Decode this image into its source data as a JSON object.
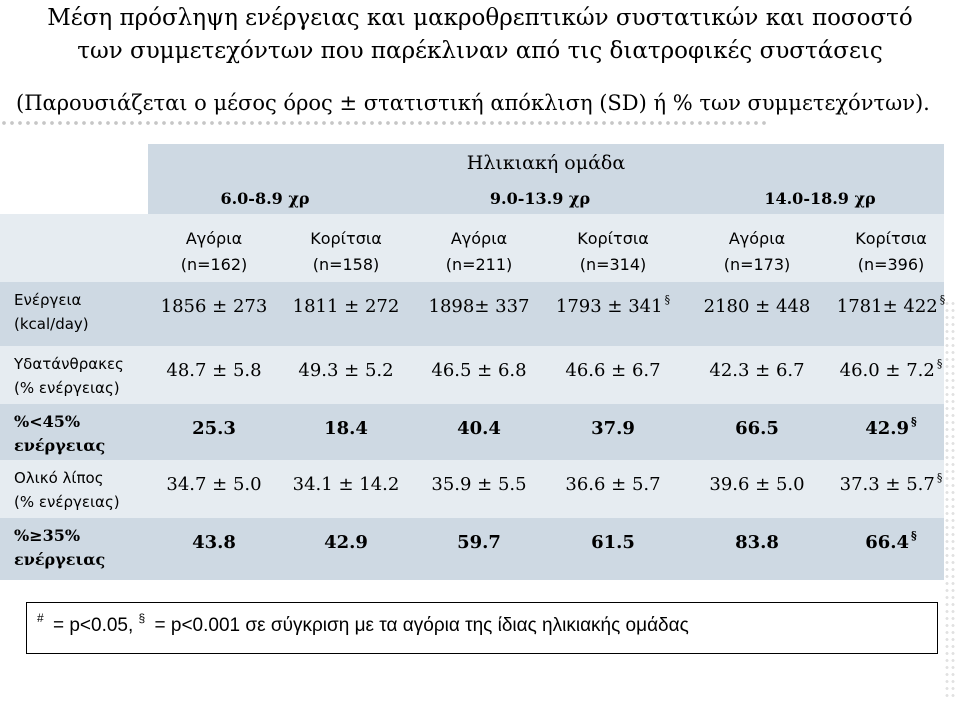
{
  "title": {
    "line1": "Μέση πρόσληψη ενέργειας και μακροθρεπτικών συστατικών και ποσοστό",
    "line2": "των συμμετεχόντων που παρέκλιναν από τις διατροφικές συστάσεις"
  },
  "subtitle": "(Παρουσιάζεται ο μέσος όρος ± στατιστική απόκλιση (SD) ή % των συμμετεχόντων).",
  "table": {
    "group_header": "Ηλικιακή ομάδα",
    "age_groups": [
      "6.0-8.9 χρ",
      "9.0-13.9 χρ",
      "14.0-18.9 χρ"
    ],
    "columns": [
      {
        "label": "Αγόρια",
        "n": "(n=162)"
      },
      {
        "label": "Κορίτσια",
        "n": "(n=158)"
      },
      {
        "label": "Αγόρια",
        "n": "(n=211)"
      },
      {
        "label": "Κορίτσια",
        "n": "(n=314)"
      },
      {
        "label": "Αγόρια",
        "n": "(n=173)"
      },
      {
        "label": "Κορίτσια",
        "n": "(n=396)"
      }
    ],
    "rows": [
      {
        "label1": "Ενέργεια",
        "label2": "(kcal/day)",
        "values": [
          "1856 ± 273",
          "1811 ± 272",
          "1898± 337",
          "1793 ± 341",
          "2180 ± 448",
          "1781± 422"
        ],
        "marks": [
          "",
          "",
          "",
          "§",
          "",
          "§"
        ]
      },
      {
        "label1": "Υδατάνθρακες",
        "label2": "(% ενέργειας)",
        "values": [
          "48.7 ± 5.8",
          "49.3 ± 5.2",
          "46.5 ± 6.8",
          "46.6 ± 6.7",
          "42.3 ± 6.7",
          "46.0 ± 7.2"
        ],
        "marks": [
          "",
          "",
          "",
          "",
          "",
          "§"
        ]
      },
      {
        "label1": "%<45%",
        "label2": "ενέργειας",
        "values": [
          "25.3",
          "18.4",
          "40.4",
          "37.9",
          "66.5",
          "42.9"
        ],
        "marks": [
          "",
          "",
          "",
          "",
          "",
          "§"
        ]
      },
      {
        "label1": "Ολικό λίπος",
        "label2": "(% ενέργειας)",
        "values": [
          "34.7 ± 5.0",
          "34.1 ± 14.2",
          "35.9 ± 5.5",
          "36.6 ± 5.7",
          "39.6 ± 5.0",
          "37.3 ± 5.7"
        ],
        "marks": [
          "",
          "",
          "",
          "",
          "",
          "§"
        ]
      },
      {
        "label1": "%≥35%",
        "label2": "ενέργειας",
        "values": [
          "43.8",
          "42.9",
          "59.7",
          "61.5",
          "83.8",
          "66.4"
        ],
        "marks": [
          "",
          "",
          "",
          "",
          "",
          "§"
        ]
      }
    ]
  },
  "footer": {
    "mark1": "#",
    "text1": " = p<0.05, ",
    "mark2": "§",
    "text2": " = p<0.001 σε σύγκριση με τα αγόρια της ίδιας ηλικιακής ομάδας"
  },
  "colors": {
    "band_dark": "#ced9e3",
    "band_light": "#e6ecf1"
  }
}
